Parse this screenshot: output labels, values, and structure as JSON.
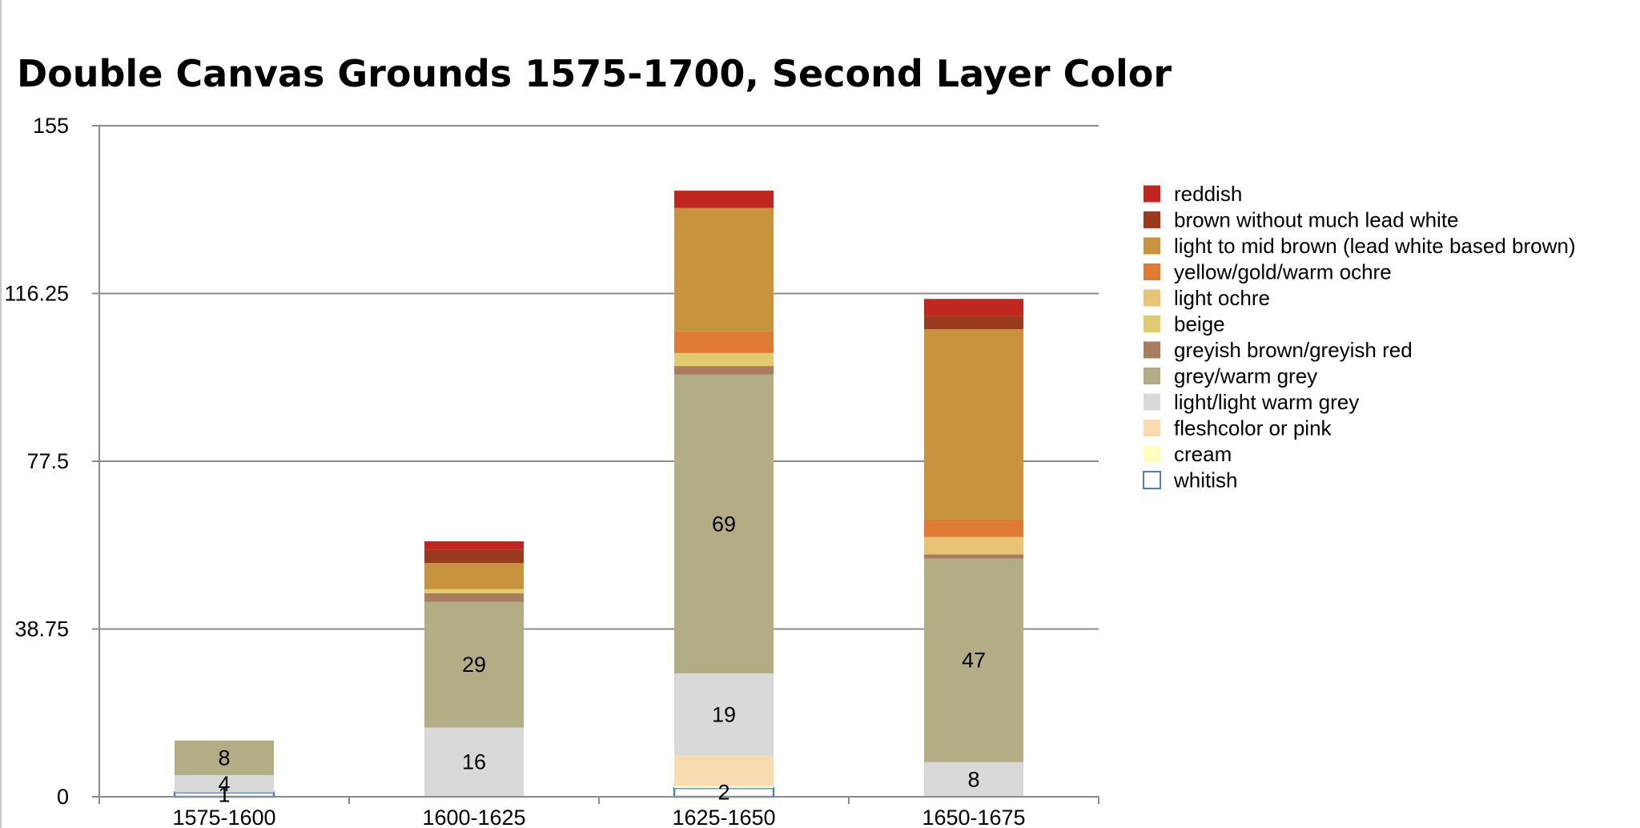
{
  "chart_data": {
    "type": "bar",
    "stacked": true,
    "title": "Double Canvas Grounds 1575-1700, Second Layer Color",
    "xlabel": "",
    "ylabel": "",
    "ylim": [
      0,
      155
    ],
    "yticks": [
      "0",
      "38.75",
      "77.5",
      "116.25",
      "155"
    ],
    "grid": true,
    "legend_position": "right",
    "categories": [
      "1575-1600",
      "1600-1625",
      "1625-1650",
      "1650-1675"
    ],
    "series": [
      {
        "name": "whitish",
        "color": "#ffffff",
        "stroke": "#4f81bd",
        "values": [
          1,
          0,
          2,
          0
        ]
      },
      {
        "name": "cream",
        "color": "#ffffc0",
        "values": [
          0,
          0,
          0.5,
          0
        ]
      },
      {
        "name": "fleshcolor or pink",
        "color": "#f8dcb0",
        "values": [
          0,
          0,
          7,
          0
        ]
      },
      {
        "name": "light/light warm grey",
        "color": "#d9d9d9",
        "values": [
          4,
          16,
          19,
          8
        ]
      },
      {
        "name": "grey/warm grey",
        "color": "#b3ad85",
        "values": [
          8,
          29,
          69,
          47
        ]
      },
      {
        "name": "greyish brown/greyish red",
        "color": "#a87e5e",
        "values": [
          0,
          2,
          2,
          1
        ]
      },
      {
        "name": "beige",
        "color": "#e0cc70",
        "values": [
          0,
          1,
          3,
          0
        ]
      },
      {
        "name": "light ochre",
        "color": "#e8c477",
        "values": [
          0,
          0,
          0,
          4
        ]
      },
      {
        "name": "yellow/gold/warm ochre",
        "color": "#e07b35",
        "values": [
          0,
          0,
          5,
          4
        ]
      },
      {
        "name": "light to mid brown (lead white based brown)",
        "color": "#c8933f",
        "values": [
          0,
          6,
          28.5,
          44
        ]
      },
      {
        "name": "brown without much lead white",
        "color": "#983c1d",
        "values": [
          0,
          3,
          0,
          3
        ]
      },
      {
        "name": "reddish",
        "color": "#c0271f",
        "values": [
          0,
          2,
          4,
          4
        ]
      }
    ],
    "data_labels": [
      {
        "category": "1575-1600",
        "series": "whitish",
        "text": "1"
      },
      {
        "category": "1575-1600",
        "series": "light/light warm grey",
        "text": "4"
      },
      {
        "category": "1575-1600",
        "series": "grey/warm grey",
        "text": "8"
      },
      {
        "category": "1600-1625",
        "series": "light/light warm grey",
        "text": "16"
      },
      {
        "category": "1600-1625",
        "series": "grey/warm grey",
        "text": "29"
      },
      {
        "category": "1625-1650",
        "series": "whitish",
        "text": "2"
      },
      {
        "category": "1625-1650",
        "series": "light/light warm grey",
        "text": "19"
      },
      {
        "category": "1625-1650",
        "series": "grey/warm grey",
        "text": "69"
      },
      {
        "category": "1650-1675",
        "series": "light/light warm grey",
        "text": "8"
      },
      {
        "category": "1650-1675",
        "series": "grey/warm grey",
        "text": "47"
      }
    ]
  }
}
